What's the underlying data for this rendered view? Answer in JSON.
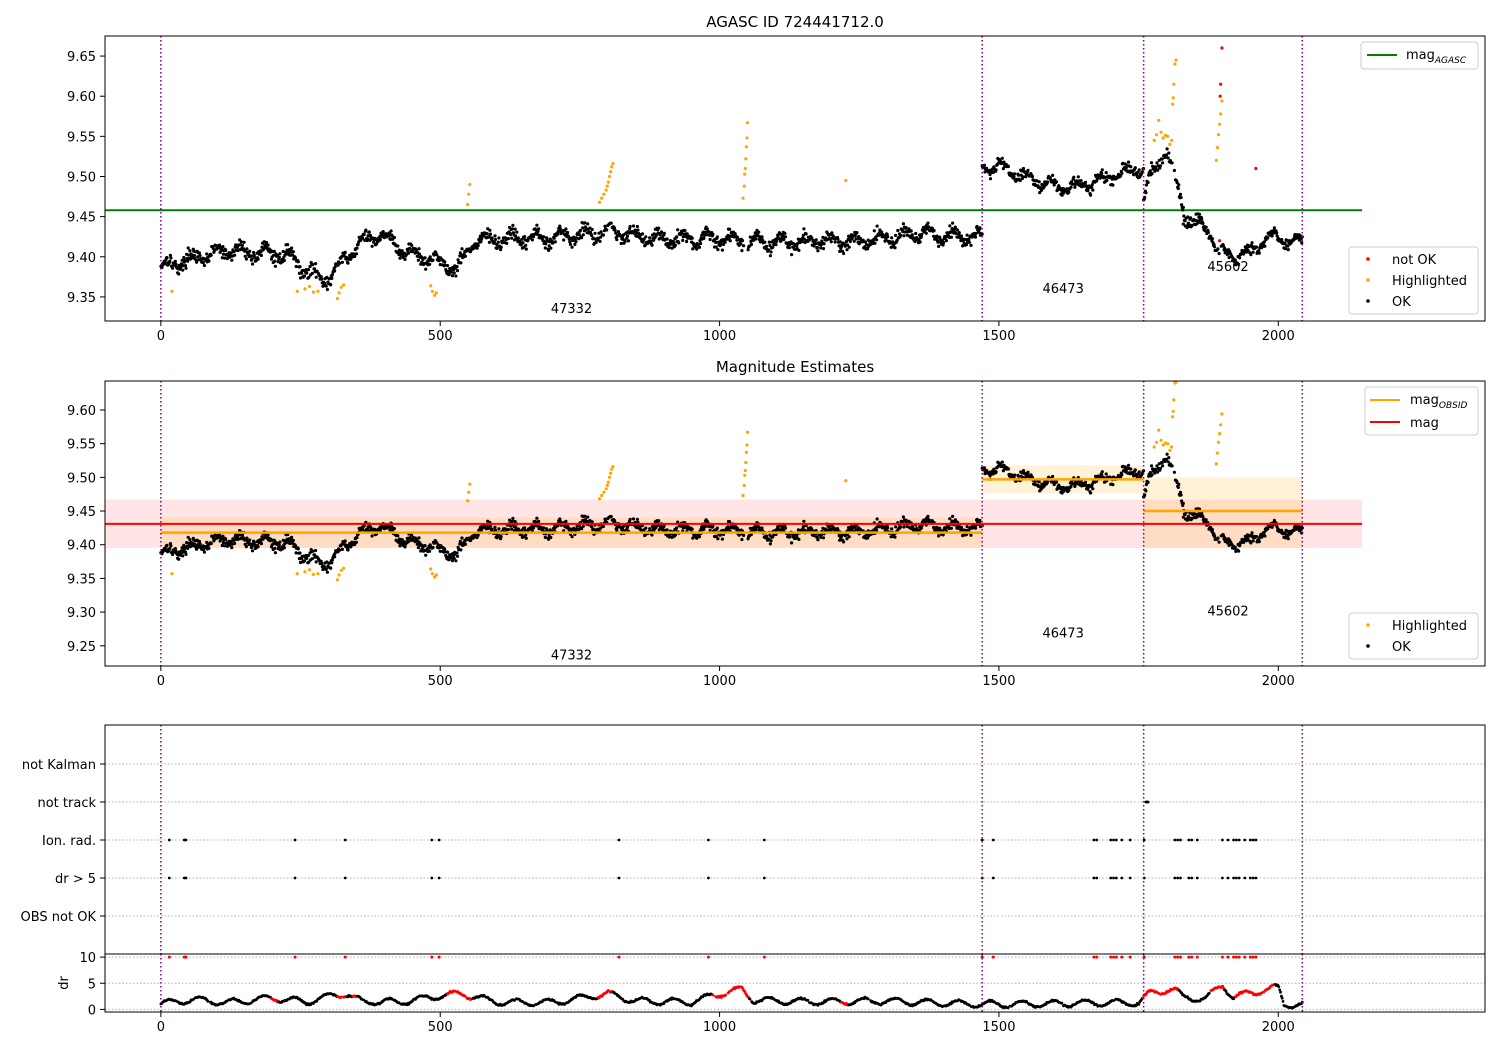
{
  "chart_data": [
    {
      "id": "agasc",
      "type": "scatter",
      "title": "AGASC ID 724441712.0",
      "xlim": [
        -100,
        2370
      ],
      "ylim": [
        9.32,
        9.675
      ],
      "y_ticks": [
        9.35,
        9.4,
        9.45,
        9.5,
        9.55,
        9.6,
        9.65
      ],
      "x_ticks": [
        0,
        500,
        1000,
        1500,
        2000
      ],
      "grid": false,
      "obs_boundaries": [
        0,
        1470,
        1759,
        2043
      ],
      "obs_labels": [
        {
          "text": "47332",
          "x": 735,
          "y": 9.33
        },
        {
          "text": "46473",
          "x": 1615,
          "y": 9.355
        },
        {
          "text": "45602",
          "x": 1910,
          "y": 9.382
        }
      ],
      "reference_line": {
        "name": "mag",
        "subscript": "AGASC",
        "value": 9.458,
        "x_range": [
          -100,
          2150
        ],
        "color": "#008000"
      },
      "legends": [
        {
          "placement": "top-right",
          "entries": [
            {
              "kind": "line",
              "color": "#008000",
              "label": "mag",
              "sub": "AGASC"
            }
          ]
        },
        {
          "placement": "lower-right",
          "entries": [
            {
              "kind": "dot",
              "color": "#ff0000",
              "label": "not OK"
            },
            {
              "kind": "dot",
              "color": "#ffa500",
              "label": "Highlighted"
            },
            {
              "kind": "dot",
              "color": "#000000",
              "label": "OK"
            }
          ]
        }
      ],
      "series": [
        {
          "name": "not OK",
          "color": "#ff0000",
          "points": [
            [
              1895,
              9.42
            ],
            [
              1896,
              9.6
            ],
            [
              1897,
              9.615
            ],
            [
              1899,
              9.66
            ],
            [
              1960,
              9.51
            ]
          ]
        },
        {
          "name": "Highlighted",
          "color": "#ffa500",
          "points": [
            [
              20,
              9.357
            ],
            [
              244,
              9.357
            ],
            [
              258,
              9.36
            ],
            [
              266,
              9.363
            ],
            [
              273,
              9.356
            ],
            [
              281,
              9.357
            ],
            [
              316,
              9.348
            ],
            [
              319,
              9.355
            ],
            [
              323,
              9.362
            ],
            [
              327,
              9.365
            ],
            [
              483,
              9.364
            ],
            [
              486,
              9.357
            ],
            [
              490,
              9.352
            ],
            [
              493,
              9.355
            ],
            [
              549,
              9.465
            ],
            [
              551,
              9.478
            ],
            [
              553,
              9.49
            ],
            [
              785,
              9.468
            ],
            [
              789,
              9.473
            ],
            [
              793,
              9.478
            ],
            [
              797,
              9.483
            ],
            [
              799,
              9.488
            ],
            [
              801,
              9.493
            ],
            [
              803,
              9.5
            ],
            [
              805,
              9.506
            ],
            [
              807,
              9.512
            ],
            [
              809,
              9.516
            ],
            [
              1042,
              9.473
            ],
            [
              1044,
              9.488
            ],
            [
              1045,
              9.503
            ],
            [
              1046,
              9.51
            ],
            [
              1047,
              9.522
            ],
            [
              1048,
              9.537
            ],
            [
              1049,
              9.548
            ],
            [
              1050,
              9.567
            ],
            [
              1226,
              9.495
            ],
            [
              1778,
              9.545
            ],
            [
              1782,
              9.552
            ],
            [
              1786,
              9.57
            ],
            [
              1790,
              9.555
            ],
            [
              1794,
              9.548
            ],
            [
              1798,
              9.551
            ],
            [
              1802,
              9.55
            ],
            [
              1806,
              9.54
            ],
            [
              1809,
              9.545
            ],
            [
              1811,
              9.59
            ],
            [
              1812,
              9.598
            ],
            [
              1813,
              9.615
            ],
            [
              1815,
              9.64
            ],
            [
              1817,
              9.645
            ],
            [
              1889,
              9.52
            ],
            [
              1891,
              9.536
            ],
            [
              1893,
              9.552
            ],
            [
              1895,
              9.565
            ],
            [
              1897,
              9.578
            ],
            [
              1899,
              9.594
            ]
          ]
        },
        {
          "name": "OK",
          "color": "#000000",
          "segments": [
            {
              "x": [
                0,
                1470
              ],
              "base": [
                [
                  0,
                  9.388
                ],
                [
                  120,
                  9.408
                ],
                [
                  230,
                  9.402
                ],
                [
                  265,
                  9.38
                ],
                [
                  300,
                  9.372
                ],
                [
                  345,
                  9.41
                ],
                [
                  390,
                  9.43
                ],
                [
                  440,
                  9.405
                ],
                [
                  495,
                  9.395
                ],
                [
                  530,
                  9.385
                ],
                [
                  560,
                  9.42
                ],
                [
                  700,
                  9.424
                ],
                [
                  800,
                  9.432
                ],
                [
                  900,
                  9.422
                ],
                [
                  1000,
                  9.422
                ],
                [
                  1100,
                  9.418
                ],
                [
                  1250,
                  9.42
                ],
                [
                  1350,
                  9.428
                ],
                [
                  1470,
                  9.425
                ]
              ],
              "noise": 0.012
            },
            {
              "x": [
                1470,
                1759
              ],
              "base": [
                [
                  1470,
                  9.51
                ],
                [
                  1500,
                  9.515
                ],
                [
                  1540,
                  9.5
                ],
                [
                  1600,
                  9.488
                ],
                [
                  1650,
                  9.488
                ],
                [
                  1700,
                  9.502
                ],
                [
                  1759,
                  9.51
                ]
              ],
              "noise": 0.011
            },
            {
              "x": [
                1759,
                1830
              ],
              "base": [
                [
                  1759,
                  9.47
                ],
                [
                  1770,
                  9.5
                ],
                [
                  1800,
                  9.535
                ],
                [
                  1830,
                  9.46
                ]
              ],
              "noise": 0.012
            },
            {
              "x": [
                1830,
                2043
              ],
              "base": [
                [
                  1830,
                  9.45
                ],
                [
                  1860,
                  9.44
                ],
                [
                  1880,
                  9.43
                ],
                [
                  1890,
                  9.41
                ],
                [
                  1920,
                  9.4
                ],
                [
                  1950,
                  9.405
                ],
                [
                  1980,
                  9.425
                ],
                [
                  2043,
                  9.418
                ]
              ],
              "noise": 0.01
            }
          ]
        }
      ]
    },
    {
      "id": "estimates",
      "type": "scatter",
      "title": "Magnitude Estimates",
      "xlim": [
        -100,
        2370
      ],
      "ylim": [
        9.22,
        9.643
      ],
      "y_ticks": [
        9.25,
        9.3,
        9.35,
        9.4,
        9.45,
        9.5,
        9.55,
        9.6
      ],
      "x_ticks": [
        0,
        500,
        1000,
        1500,
        2000
      ],
      "grid": false,
      "obs_boundaries": [
        0,
        1470,
        1759,
        2043
      ],
      "obs_labels": [
        {
          "text": "47332",
          "x": 735,
          "y": 9.23
        },
        {
          "text": "46473",
          "x": 1615,
          "y": 9.262
        },
        {
          "text": "45602",
          "x": 1910,
          "y": 9.295
        }
      ],
      "mag_line": {
        "name": "mag",
        "value": 9.431,
        "band": [
          9.395,
          9.467
        ],
        "x_range": [
          -100,
          2150
        ],
        "color": "#ff0000"
      },
      "obsid_mags": [
        {
          "x_range": [
            0,
            1470
          ],
          "value": 9.418,
          "band": [
            9.396,
            9.44
          ]
        },
        {
          "x_range": [
            1470,
            1759
          ],
          "value": 9.497,
          "band": [
            9.476,
            9.518
          ]
        },
        {
          "x_range": [
            1759,
            2043
          ],
          "value": 9.45,
          "band": [
            9.395,
            9.5
          ]
        }
      ],
      "legends": [
        {
          "placement": "top-right",
          "entries": [
            {
              "kind": "line",
              "color": "#ffa500",
              "label": "mag",
              "sub": "OBSID"
            },
            {
              "kind": "line",
              "color": "#ff0000",
              "label": "mag"
            }
          ]
        },
        {
          "placement": "lower-right",
          "entries": [
            {
              "kind": "dot",
              "color": "#ffa500",
              "label": "Highlighted"
            },
            {
              "kind": "dot",
              "color": "#000000",
              "label": "OK"
            }
          ]
        }
      ]
    },
    {
      "id": "flags",
      "type": "scatter",
      "categories": [
        "not Kalman",
        "not track",
        "Ion. rad.",
        "dr > 5",
        "OBS not OK"
      ],
      "xlim": [
        -100,
        2370
      ],
      "obs_boundaries": [
        0,
        1470,
        1759,
        2043
      ],
      "flag_points": {
        "not track": [
          1763,
          1765,
          1767
        ],
        "Ion. rad.": [
          15,
          42,
          45,
          240,
          330,
          485,
          498,
          820,
          980,
          1080,
          1470,
          1490,
          1670,
          1675,
          1700,
          1705,
          1710,
          1720,
          1735,
          1760,
          1815,
          1820,
          1825,
          1840,
          1845,
          1855,
          1900,
          1910,
          1920,
          1925,
          1930,
          1940,
          1950,
          1955,
          1960
        ],
        "dr > 5": [
          15,
          42,
          45,
          240,
          330,
          485,
          498,
          820,
          980,
          1080,
          1470,
          1490,
          1670,
          1675,
          1700,
          1705,
          1710,
          1720,
          1735,
          1760,
          1815,
          1820,
          1825,
          1840,
          1845,
          1855,
          1900,
          1910,
          1920,
          1925,
          1930,
          1940,
          1950,
          1955,
          1960
        ]
      }
    },
    {
      "id": "dr",
      "type": "scatter",
      "ylabel": "dr",
      "xlim": [
        -100,
        2370
      ],
      "ylim": [
        -0.5,
        10.6
      ],
      "y_ticks": [
        0,
        5,
        10
      ],
      "x_ticks": [
        0,
        500,
        1000,
        1500,
        2000
      ],
      "obs_boundaries": [
        0,
        1470,
        1759,
        2043
      ],
      "clipped_value": 10,
      "clipped_x": [
        15,
        42,
        45,
        240,
        330,
        485,
        498,
        820,
        980,
        1080,
        1470,
        1490,
        1670,
        1675,
        1700,
        1705,
        1710,
        1720,
        1735,
        1760,
        1815,
        1820,
        1825,
        1840,
        1845,
        1855,
        1900,
        1910,
        1920,
        1925,
        1930,
        1940,
        1950,
        1955,
        1960
      ],
      "red_ranges": [
        [
          200,
          208
        ],
        [
          318,
          330
        ],
        [
          345,
          350
        ],
        [
          515,
          555
        ],
        [
          785,
          805
        ],
        [
          990,
          1050
        ],
        [
          1220,
          1228
        ],
        [
          1760,
          1820
        ],
        [
          1880,
          1900
        ],
        [
          1925,
          1990
        ]
      ],
      "base": [
        [
          0,
          1.1
        ],
        [
          60,
          1.9
        ],
        [
          120,
          1.3
        ],
        [
          200,
          2.2
        ],
        [
          260,
          1.4
        ],
        [
          300,
          2.5
        ],
        [
          330,
          3.0
        ],
        [
          360,
          1.5
        ],
        [
          430,
          1.4
        ],
        [
          500,
          2.6
        ],
        [
          540,
          3.0
        ],
        [
          600,
          1.4
        ],
        [
          700,
          1.3
        ],
        [
          800,
          3.0
        ],
        [
          850,
          1.6
        ],
        [
          950,
          1.4
        ],
        [
          990,
          2.7
        ],
        [
          1040,
          3.8
        ],
        [
          1060,
          1.8
        ],
        [
          1150,
          1.5
        ],
        [
          1230,
          1.5
        ],
        [
          1300,
          1.6
        ],
        [
          1400,
          1.2
        ],
        [
          1470,
          1.0
        ],
        [
          1550,
          1.0
        ],
        [
          1650,
          1.2
        ],
        [
          1750,
          1.3
        ],
        [
          1770,
          3.0
        ],
        [
          1800,
          3.8
        ],
        [
          1815,
          3.8
        ],
        [
          1830,
          2.3
        ],
        [
          1870,
          2.0
        ],
        [
          1900,
          4.8
        ],
        [
          1920,
          2.2
        ],
        [
          1950,
          3.2
        ],
        [
          2000,
          4.2
        ],
        [
          2010,
          1.0
        ],
        [
          2043,
          0.8
        ]
      ]
    }
  ]
}
